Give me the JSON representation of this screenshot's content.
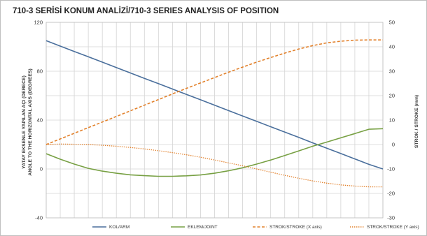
{
  "chart_data": {
    "type": "line",
    "title": "710-3 SERİSİ KONUM ANALİZİ/710-3 SERIES ANALYSIS OF POSITION",
    "ylabel_left": [
      "YATAY EKSENLE YAPILAN AÇI (DERECE)",
      "ANGLE TO THE HORIZONTAL AXIS  (DEGREES)"
    ],
    "ylabel_right": "STROK / STROKE (mm)",
    "ylim_left": [
      -40,
      120
    ],
    "yticks_left": [
      -40,
      0,
      40,
      80,
      120
    ],
    "ylim_right": [
      -30,
      50
    ],
    "yticks_right": [
      -30,
      -20,
      -10,
      0,
      10,
      20,
      30,
      40,
      50
    ],
    "x_points": 25,
    "grid": true,
    "legend_position": "bottom",
    "colors": {
      "arm": "#4a6f9c",
      "joint": "#77a043",
      "stroke_x": "#e2802a",
      "stroke_y": "#e2802a",
      "grid": "#d4d4d4",
      "frame": "#bfbfbf"
    },
    "series": [
      {
        "name": "KOL/ARM",
        "axis": "left",
        "style": "solid",
        "values": [
          105,
          100.6,
          96.2,
          91.8,
          87.4,
          83,
          78.6,
          74.2,
          69.8,
          65.4,
          61,
          56.6,
          52.2,
          47.8,
          43.4,
          39,
          34.6,
          30.2,
          25.8,
          21.4,
          17,
          12.6,
          8.2,
          3.8,
          0
        ]
      },
      {
        "name": "EKLEM/JOINT",
        "axis": "left",
        "style": "solid",
        "values": [
          12.5,
          8,
          4,
          0.5,
          -1.8,
          -3.5,
          -4.8,
          -5.5,
          -6,
          -6,
          -5.6,
          -4.9,
          -3.5,
          -1.5,
          1,
          4,
          7.3,
          11,
          14.8,
          18.6,
          22,
          25.5,
          29,
          32.5,
          33
        ]
      },
      {
        "name": "STROK/STROKE (X axis)",
        "axis": "right",
        "style": "dashed",
        "values": [
          0,
          2.3,
          4.6,
          6.9,
          9.2,
          11.5,
          13.8,
          16.1,
          18.4,
          20.7,
          23,
          25.2,
          27.4,
          29.6,
          31.7,
          33.7,
          35.6,
          37.4,
          39.1,
          40.5,
          41.6,
          42.3,
          42.7,
          42.8,
          42.8
        ]
      },
      {
        "name": "STROK/STROKE (Y axis)",
        "axis": "right",
        "style": "dotted",
        "values": [
          0,
          0.2,
          0.1,
          0,
          -0.3,
          -0.7,
          -1.2,
          -1.8,
          -2.5,
          -3.3,
          -4.2,
          -5.2,
          -6.3,
          -7.5,
          -8.7,
          -10,
          -11.3,
          -12.6,
          -13.8,
          -14.9,
          -15.8,
          -16.5,
          -17,
          -17.3,
          -17.3
        ]
      }
    ]
  }
}
